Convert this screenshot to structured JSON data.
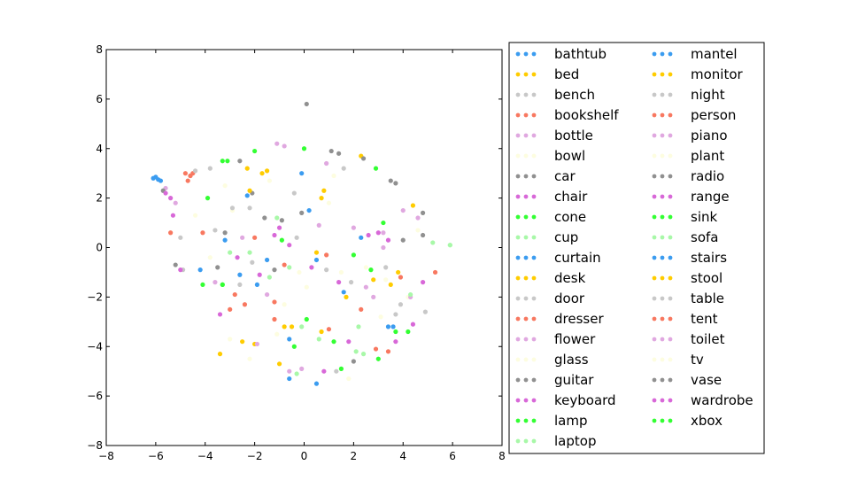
{
  "chart_data": {
    "type": "scatter",
    "title": "",
    "xlabel": "",
    "ylabel": "",
    "xlim": [
      -8,
      8
    ],
    "ylim": [
      -8,
      8
    ],
    "xticks": [
      -8,
      -6,
      -4,
      -2,
      0,
      2,
      4,
      6,
      8
    ],
    "yticks": [
      -8,
      -6,
      -4,
      -2,
      0,
      2,
      4,
      6,
      8
    ],
    "xtick_labels": [
      "−8",
      "−6",
      "−4",
      "−2",
      "0",
      "2",
      "4",
      "6",
      "8"
    ],
    "ytick_labels": [
      "−8",
      "−6",
      "−4",
      "−2",
      "0",
      "2",
      "4",
      "6",
      "8"
    ],
    "grid": false,
    "legend_position": "outside right",
    "series": [
      {
        "name": "bathtub",
        "color": "#3b9cf0",
        "points": [
          [
            -6.1,
            2.8
          ],
          [
            -5.9,
            2.75
          ],
          [
            -0.6,
            -5.3
          ],
          [
            0.5,
            -5.5
          ],
          [
            -3.2,
            0.3
          ]
        ]
      },
      {
        "name": "bed",
        "color": "#ffcc00",
        "points": [
          [
            -1.5,
            3.1
          ],
          [
            2.3,
            3.7
          ],
          [
            -2.5,
            -3.8
          ],
          [
            0.7,
            2.0
          ],
          [
            -0.8,
            -3.2
          ]
        ]
      },
      {
        "name": "bench",
        "color": "#c8c8c8",
        "points": [
          [
            -4.6,
            2.9
          ],
          [
            -3.8,
            3.2
          ],
          [
            -5.0,
            0.4
          ],
          [
            4.9,
            -2.6
          ],
          [
            -2.2,
            1.6
          ]
        ]
      },
      {
        "name": "bookshelf",
        "color": "#f87860",
        "points": [
          [
            -4.8,
            3.0
          ],
          [
            -4.6,
            2.9
          ],
          [
            -4.5,
            3.0
          ],
          [
            -5.4,
            0.6
          ],
          [
            3.4,
            -4.2
          ]
        ]
      },
      {
        "name": "bottle",
        "color": "#e0a8e0",
        "points": [
          [
            -1.1,
            4.2
          ],
          [
            -5.6,
            2.4
          ],
          [
            4.6,
            1.2
          ],
          [
            -0.6,
            -5.0
          ],
          [
            2.8,
            -2.0
          ]
        ]
      },
      {
        "name": "bowl",
        "color": "#fdfde0",
        "points": [
          [
            -2.9,
            1.5
          ],
          [
            1.2,
            2.9
          ],
          [
            -0.2,
            -1.0
          ],
          [
            1.8,
            -5.3
          ],
          [
            3.3,
            -1.3
          ]
        ]
      },
      {
        "name": "car",
        "color": "#909090",
        "points": [
          [
            0.1,
            5.8
          ],
          [
            -5.2,
            -0.7
          ],
          [
            4.8,
            1.4
          ],
          [
            3.7,
            2.6
          ],
          [
            -2.6,
            3.5
          ]
        ]
      },
      {
        "name": "chair",
        "color": "#d868d8",
        "points": [
          [
            -5.4,
            2.0
          ],
          [
            -5.3,
            1.3
          ],
          [
            3.0,
            0.6
          ],
          [
            -1.0,
            0.8
          ],
          [
            4.8,
            -1.4
          ]
        ]
      },
      {
        "name": "cone",
        "color": "#33ff33",
        "points": [
          [
            -2.0,
            3.9
          ],
          [
            0.0,
            4.0
          ],
          [
            2.9,
            3.2
          ],
          [
            -3.3,
            3.5
          ],
          [
            0.1,
            -2.9
          ]
        ]
      },
      {
        "name": "cup",
        "color": "#a8f8a8",
        "points": [
          [
            -0.6,
            -0.8
          ],
          [
            5.9,
            0.1
          ],
          [
            2.1,
            -4.2
          ],
          [
            -3.0,
            -0.2
          ],
          [
            0.6,
            -3.7
          ]
        ]
      },
      {
        "name": "curtain",
        "color": "#3b9cf0",
        "points": [
          [
            -0.6,
            -3.7
          ],
          [
            0.2,
            1.5
          ],
          [
            -4.2,
            -0.9
          ],
          [
            3.4,
            -3.2
          ],
          [
            -2.3,
            2.1
          ]
        ]
      },
      {
        "name": "desk",
        "color": "#ffcc00",
        "points": [
          [
            -3.4,
            -4.3
          ],
          [
            -1.7,
            3.0
          ],
          [
            0.7,
            -3.4
          ],
          [
            3.5,
            -1.5
          ],
          [
            -2.0,
            -3.9
          ]
        ]
      },
      {
        "name": "door",
        "color": "#c8c8c8",
        "points": [
          [
            -4.4,
            3.1
          ],
          [
            3.9,
            -2.3
          ],
          [
            -2.6,
            -1.5
          ],
          [
            1.6,
            3.2
          ],
          [
            0.9,
            -0.9
          ]
        ]
      },
      {
        "name": "dresser",
        "color": "#f87860",
        "points": [
          [
            -4.7,
            2.7
          ],
          [
            -3.0,
            -2.5
          ],
          [
            5.3,
            -1.0
          ],
          [
            2.9,
            -4.1
          ],
          [
            -2.0,
            0.4
          ]
        ]
      },
      {
        "name": "flower",
        "color": "#e0a8e0",
        "points": [
          [
            -0.8,
            4.1
          ],
          [
            4.0,
            1.5
          ],
          [
            -5.2,
            1.8
          ],
          [
            2.5,
            -1.6
          ],
          [
            -0.1,
            -4.9
          ]
        ]
      },
      {
        "name": "glass",
        "color": "#fdfde0",
        "points": [
          [
            -2.2,
            -4.5
          ],
          [
            4.2,
            -2.0
          ],
          [
            -3.0,
            -3.7
          ],
          [
            1.5,
            -1.0
          ],
          [
            -1.4,
            2.7
          ]
        ]
      },
      {
        "name": "guitar",
        "color": "#909090",
        "points": [
          [
            -5.7,
            2.3
          ],
          [
            1.1,
            3.9
          ],
          [
            -1.2,
            -0.9
          ],
          [
            4.8,
            0.5
          ],
          [
            -3.5,
            -0.8
          ]
        ]
      },
      {
        "name": "keyboard",
        "color": "#d868d8",
        "points": [
          [
            -5.6,
            2.2
          ],
          [
            -0.6,
            0.1
          ],
          [
            2.6,
            0.5
          ],
          [
            -3.4,
            -2.7
          ],
          [
            0.8,
            -5.0
          ]
        ]
      },
      {
        "name": "lamp",
        "color": "#33ff33",
        "points": [
          [
            2.0,
            -0.3
          ],
          [
            -0.4,
            -4.0
          ],
          [
            1.2,
            -3.8
          ],
          [
            -3.3,
            -1.5
          ],
          [
            3.7,
            -3.4
          ]
        ]
      },
      {
        "name": "laptop",
        "color": "#a8f8a8",
        "points": [
          [
            -0.1,
            -3.2
          ],
          [
            -2.2,
            -0.2
          ],
          [
            5.2,
            0.2
          ],
          [
            -1.4,
            -1.2
          ],
          [
            2.4,
            -4.3
          ]
        ]
      },
      {
        "name": "mantel",
        "color": "#3b9cf0",
        "points": [
          [
            -6.0,
            2.85
          ],
          [
            -5.8,
            2.7
          ],
          [
            -0.1,
            3.0
          ],
          [
            2.3,
            0.4
          ],
          [
            -1.5,
            -0.5
          ]
        ]
      },
      {
        "name": "monitor",
        "color": "#ffcc00",
        "points": [
          [
            0.5,
            -0.2
          ],
          [
            -0.5,
            -3.2
          ],
          [
            3.8,
            -1.0
          ],
          [
            -2.3,
            3.2
          ],
          [
            1.7,
            -2.0
          ]
        ]
      },
      {
        "name": "night",
        "color": "#c8c8c8",
        "points": [
          [
            -4.9,
            -0.9
          ],
          [
            3.7,
            -2.7
          ],
          [
            -2.9,
            1.6
          ],
          [
            1.3,
            -5.0
          ],
          [
            -0.3,
            0.4
          ]
        ]
      },
      {
        "name": "person",
        "color": "#f87860",
        "points": [
          [
            -1.2,
            -2.9
          ],
          [
            3.9,
            -1.2
          ],
          [
            -0.8,
            -0.7
          ],
          [
            1.0,
            -3.3
          ],
          [
            -2.4,
            -2.3
          ]
        ]
      },
      {
        "name": "piano",
        "color": "#e0a8e0",
        "points": [
          [
            4.3,
            -2.0
          ],
          [
            -2.5,
            0.4
          ],
          [
            0.9,
            3.4
          ],
          [
            -1.9,
            -3.9
          ],
          [
            3.2,
            0.0
          ]
        ]
      },
      {
        "name": "plant",
        "color": "#fdfde0",
        "points": [
          [
            -4.4,
            1.3
          ],
          [
            2.5,
            -0.8
          ],
          [
            -0.8,
            -2.3
          ],
          [
            4.6,
            0.7
          ],
          [
            -3.8,
            -0.4
          ]
        ]
      },
      {
        "name": "radio",
        "color": "#909090",
        "points": [
          [
            -2.1,
            2.2
          ],
          [
            1.4,
            3.8
          ],
          [
            3.5,
            2.7
          ],
          [
            -0.9,
            1.1
          ],
          [
            2.4,
            3.6
          ]
        ]
      },
      {
        "name": "range",
        "color": "#d868d8",
        "points": [
          [
            4.4,
            -3.1
          ],
          [
            -1.2,
            0.5
          ],
          [
            3.4,
            0.3
          ],
          [
            -5.0,
            -0.9
          ],
          [
            1.8,
            -3.8
          ]
        ]
      },
      {
        "name": "sink",
        "color": "#33ff33",
        "points": [
          [
            -3.3,
            -1.5
          ],
          [
            4.2,
            -3.4
          ],
          [
            -0.9,
            0.3
          ],
          [
            3.0,
            -4.5
          ],
          [
            -3.9,
            2.0
          ]
        ]
      },
      {
        "name": "sofa",
        "color": "#a8f8a8",
        "points": [
          [
            5.9,
            0.1
          ],
          [
            -0.3,
            -5.1
          ],
          [
            2.2,
            -3.2
          ],
          [
            -1.1,
            1.2
          ],
          [
            4.3,
            -1.9
          ]
        ]
      },
      {
        "name": "stairs",
        "color": "#3b9cf0",
        "points": [
          [
            -1.9,
            -1.5
          ],
          [
            0.5,
            -0.5
          ],
          [
            3.6,
            -3.2
          ],
          [
            -2.6,
            -1.1
          ],
          [
            1.6,
            -1.8
          ]
        ]
      },
      {
        "name": "stool",
        "color": "#ffcc00",
        "points": [
          [
            -2.2,
            2.3
          ],
          [
            0.8,
            2.3
          ],
          [
            -1.0,
            -4.7
          ],
          [
            4.4,
            1.7
          ],
          [
            2.8,
            -1.3
          ]
        ]
      },
      {
        "name": "table",
        "color": "#c8c8c8",
        "points": [
          [
            -3.6,
            0.7
          ],
          [
            1.9,
            -1.4
          ],
          [
            -2.1,
            -0.6
          ],
          [
            3.3,
            -0.8
          ],
          [
            -0.4,
            2.2
          ]
        ]
      },
      {
        "name": "tent",
        "color": "#f87860",
        "points": [
          [
            -2.8,
            -1.9
          ],
          [
            0.9,
            -0.3
          ],
          [
            -4.1,
            0.6
          ],
          [
            2.3,
            -2.5
          ],
          [
            -1.2,
            -2.2
          ]
        ]
      },
      {
        "name": "toilet",
        "color": "#e0a8e0",
        "points": [
          [
            3.2,
            0.6
          ],
          [
            -1.5,
            -1.9
          ],
          [
            0.6,
            0.9
          ],
          [
            -3.6,
            -1.4
          ],
          [
            2.0,
            0.8
          ]
        ]
      },
      {
        "name": "tv",
        "color": "#fdfde0",
        "points": [
          [
            1.0,
            1.8
          ],
          [
            -1.1,
            -3.5
          ],
          [
            3.1,
            -2.8
          ],
          [
            -3.2,
            2.5
          ],
          [
            0.1,
            -1.6
          ]
        ]
      },
      {
        "name": "vase",
        "color": "#909090",
        "points": [
          [
            -1.6,
            1.2
          ],
          [
            2.0,
            -4.6
          ],
          [
            -3.2,
            0.6
          ],
          [
            4.0,
            0.3
          ],
          [
            -0.1,
            1.4
          ]
        ]
      },
      {
        "name": "wardrobe",
        "color": "#d868d8",
        "points": [
          [
            -1.8,
            -1.1
          ],
          [
            1.4,
            -1.4
          ],
          [
            -2.7,
            -0.4
          ],
          [
            3.7,
            -3.8
          ],
          [
            0.3,
            -0.8
          ]
        ]
      },
      {
        "name": "xbox",
        "color": "#33ff33",
        "points": [
          [
            -3.1,
            3.5
          ],
          [
            3.2,
            1.0
          ],
          [
            -4.1,
            -1.5
          ],
          [
            1.5,
            -4.9
          ],
          [
            2.7,
            -0.9
          ]
        ]
      }
    ]
  }
}
